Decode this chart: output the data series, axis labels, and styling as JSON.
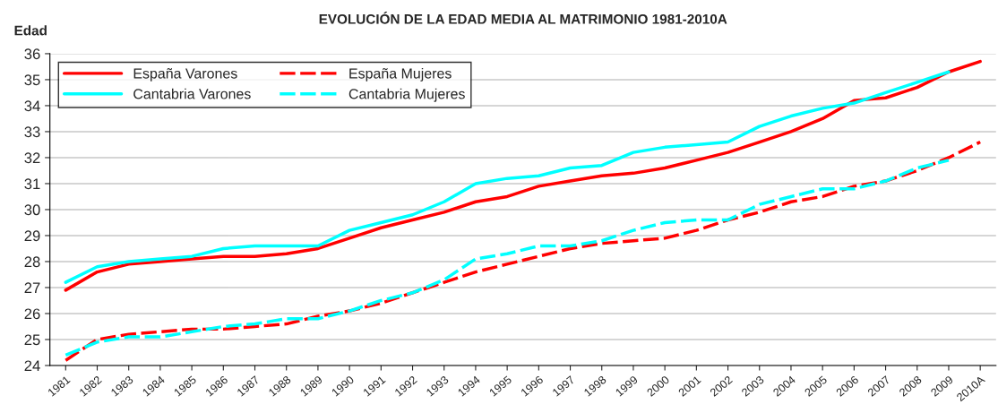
{
  "chart_data": {
    "type": "line",
    "title": "EVOLUCIÓN DE LA EDAD MEDIA AL MATRIMONIO 1981-2010A",
    "ylabel": "Edad",
    "categories": [
      "1981",
      "1982",
      "1983",
      "1984",
      "1985",
      "1986",
      "1987",
      "1988",
      "1989",
      "1990",
      "1991",
      "1992",
      "1993",
      "1994",
      "1995",
      "1996",
      "1997",
      "1998",
      "1999",
      "2000",
      "2001",
      "2002",
      "2003",
      "2004",
      "2005",
      "2006",
      "2007",
      "2008",
      "2009",
      "2010A"
    ],
    "series": [
      {
        "name": "España Varones",
        "color": "#ff0000",
        "line_style": "solid",
        "values": [
          26.9,
          27.6,
          27.9,
          28.0,
          28.1,
          28.2,
          28.2,
          28.3,
          28.5,
          28.9,
          29.3,
          29.6,
          29.9,
          30.3,
          30.5,
          30.9,
          31.1,
          31.3,
          31.4,
          31.6,
          31.9,
          32.2,
          32.6,
          33.0,
          33.5,
          34.2,
          34.3,
          34.7,
          35.3,
          35.7
        ]
      },
      {
        "name": "España Mujeres",
        "color": "#ff0000",
        "line_style": "dashed",
        "values": [
          24.2,
          25.0,
          25.2,
          25.3,
          25.4,
          25.4,
          25.5,
          25.6,
          25.9,
          26.1,
          26.4,
          26.8,
          27.2,
          27.6,
          27.9,
          28.2,
          28.5,
          28.7,
          28.8,
          28.9,
          29.2,
          29.6,
          29.9,
          30.3,
          30.5,
          30.9,
          31.1,
          31.5,
          32.0,
          32.6
        ]
      },
      {
        "name": "Cantabria Varones",
        "color": "#00ffff",
        "line_style": "solid",
        "values": [
          27.2,
          27.8,
          28.0,
          28.1,
          28.2,
          28.5,
          28.6,
          28.6,
          28.6,
          29.2,
          29.5,
          29.8,
          30.3,
          31.0,
          31.2,
          31.3,
          31.6,
          31.7,
          32.2,
          32.4,
          32.5,
          32.6,
          33.2,
          33.6,
          33.9,
          34.1,
          34.5,
          34.9,
          35.3,
          null
        ]
      },
      {
        "name": "Cantabria Mujeres",
        "color": "#00ffff",
        "line_style": "dashed",
        "values": [
          24.4,
          24.9,
          25.1,
          25.1,
          25.3,
          25.5,
          25.6,
          25.8,
          25.8,
          26.1,
          26.5,
          26.8,
          27.3,
          28.1,
          28.3,
          28.6,
          28.6,
          28.8,
          29.2,
          29.5,
          29.6,
          29.6,
          30.2,
          30.5,
          30.8,
          30.8,
          31.1,
          31.6,
          31.9,
          null
        ]
      }
    ],
    "ylim": [
      24,
      36
    ],
    "yticks": [
      24,
      25,
      26,
      27,
      28,
      29,
      30,
      31,
      32,
      33,
      34,
      35,
      36
    ],
    "grid": "y",
    "legend": "top left",
    "marker": "none"
  }
}
